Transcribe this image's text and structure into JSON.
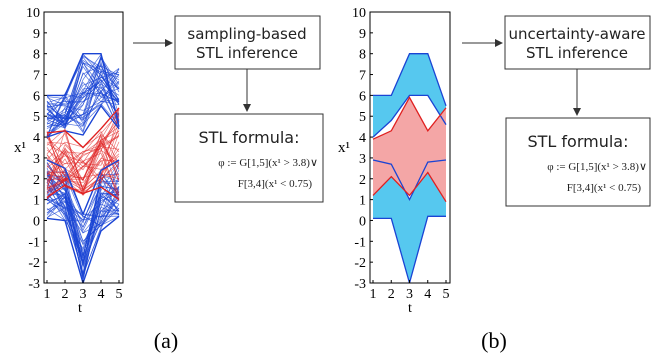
{
  "panels": [
    {
      "id": "a",
      "caption": "(a)",
      "ylabel": "x¹",
      "xlabel": "t",
      "yticks": [
        "10",
        "9",
        "8",
        "7",
        "6",
        "5",
        "4",
        "3",
        "2",
        "1",
        "0",
        "-1",
        "-2",
        "-3"
      ],
      "xticks": [
        "1",
        "2",
        "3",
        "4",
        "5"
      ],
      "box1_lines": [
        "sampling-based",
        "STL inference"
      ],
      "box2_title": "STL formula:",
      "formula_line1": "φ := G[1,5](x¹ > 3.8)∨",
      "formula_line2": "F[3,4](x¹ < 0.75)"
    },
    {
      "id": "b",
      "caption": "(b)",
      "ylabel": "x¹",
      "xlabel": "t",
      "yticks": [
        "10",
        "9",
        "8",
        "7",
        "6",
        "5",
        "4",
        "3",
        "2",
        "1",
        "0",
        "-1",
        "-2",
        "-3"
      ],
      "xticks": [
        "1",
        "2",
        "3",
        "4",
        "5"
      ],
      "box1_lines": [
        "uncertainty-aware",
        "STL inference"
      ],
      "box2_title": "STL formula:",
      "formula_line1": "φ := G[1,5](x¹ > 3.8)∨",
      "formula_line2": "F[3,4](x¹ < 0.75)"
    }
  ],
  "colors": {
    "blue_line": "#1a44d4",
    "blue_fill": "#56c8ef",
    "red_line": "#e02020",
    "red_fill": "#f4a6a6"
  }
}
